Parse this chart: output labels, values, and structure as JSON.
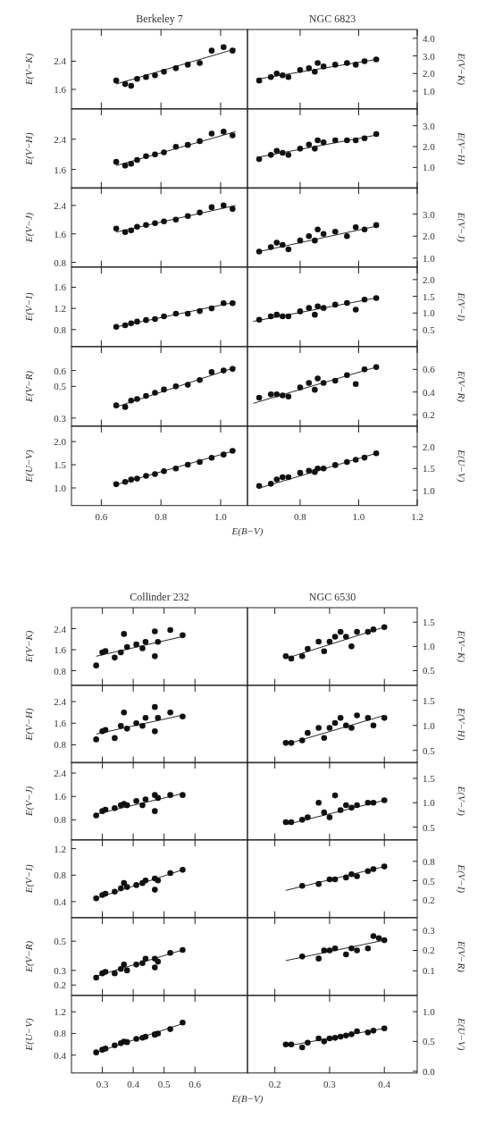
{
  "chart_data": [
    {
      "type": "scatter",
      "title": "Berkeley 7",
      "ylabel": "E(V−K)",
      "xlim": [
        0.5,
        1.09
      ],
      "xticks": [
        0.6,
        0.8,
        1
      ],
      "ylim": [
        1.05,
        3.3
      ],
      "yticks": [
        1.6,
        2.4
      ],
      "tick_labels": "y",
      "marker": "circle",
      "series": [
        {
          "x": [
            0.65,
            0.68,
            0.7,
            0.72,
            0.75,
            0.78,
            0.81,
            0.85,
            0.89,
            0.93,
            0.97,
            1.01,
            1.04
          ],
          "values": [
            1.85,
            1.75,
            1.7,
            1.9,
            1.95,
            2.0,
            2.1,
            2.2,
            2.3,
            2.35,
            2.7,
            2.8,
            2.7
          ],
          "color": "#111111"
        },
        {
          "type": "line",
          "marker": "none",
          "x": [
            0.65,
            1.05
          ],
          "values": [
            1.75,
            2.75
          ],
          "color": "#111111"
        }
      ]
    },
    {
      "type": "scatter",
      "title": "NGC 6823",
      "ylabel": "E(V−K)",
      "xlim": [
        0.62,
        1.2
      ],
      "xticks": [
        0.8,
        1,
        1.2
      ],
      "ylim": [
        0,
        4.5
      ],
      "yticks": [
        {
          "value": 1,
          "label": "1.0"
        },
        {
          "value": 2,
          "label": "2.0"
        },
        {
          "value": 3,
          "label": "3.0"
        },
        {
          "value": 4,
          "label": "4.0"
        }
      ],
      "tick_labels": "y",
      "marker": "circle",
      "series": [
        {
          "x": [
            0.66,
            0.7,
            0.72,
            0.74,
            0.76,
            0.8,
            0.83,
            0.85,
            0.86,
            0.88,
            0.92,
            0.96,
            0.99,
            1.02,
            1.06
          ],
          "values": [
            1.6,
            1.8,
            2.0,
            1.9,
            1.8,
            2.2,
            2.3,
            2.1,
            2.6,
            2.4,
            2.5,
            2.6,
            2.5,
            2.7,
            2.8
          ],
          "color": "#111111"
        },
        {
          "type": "line",
          "marker": "none",
          "x": [
            0.66,
            1.06
          ],
          "values": [
            1.7,
            2.8
          ],
          "color": "#111111"
        }
      ]
    },
    {
      "type": "scatter",
      "ylabel": "E(V−H)",
      "xlim": [
        0.5,
        1.09
      ],
      "xticks": [
        0.6,
        0.8,
        1
      ],
      "ylim": [
        1.1,
        3.2
      ],
      "yticks": [
        1.6,
        2.4
      ],
      "tick_labels": "y",
      "marker": "circle",
      "series": [
        {
          "x": [
            0.65,
            0.68,
            0.7,
            0.72,
            0.75,
            0.78,
            0.81,
            0.85,
            0.89,
            0.93,
            0.97,
            1.01,
            1.04
          ],
          "values": [
            1.8,
            1.7,
            1.75,
            1.85,
            1.95,
            2.0,
            2.05,
            2.2,
            2.25,
            2.35,
            2.55,
            2.6,
            2.5
          ],
          "color": "#111111"
        },
        {
          "type": "line",
          "marker": "none",
          "x": [
            0.65,
            1.05
          ],
          "values": [
            1.7,
            2.6
          ],
          "color": "#111111"
        }
      ]
    },
    {
      "type": "scatter",
      "ylabel": "E(V−H)",
      "xlim": [
        0.62,
        1.2
      ],
      "xticks": [
        0.8,
        1,
        1.2
      ],
      "ylim": [
        0,
        3.8
      ],
      "yticks": [
        {
          "value": 1,
          "label": "1.0"
        },
        {
          "value": 2,
          "label": "2.0"
        },
        {
          "value": 3,
          "label": "3.0"
        }
      ],
      "tick_labels": "y",
      "marker": "circle",
      "series": [
        {
          "x": [
            0.66,
            0.7,
            0.72,
            0.74,
            0.76,
            0.8,
            0.83,
            0.85,
            0.86,
            0.88,
            0.92,
            0.96,
            0.99,
            1.02,
            1.06
          ],
          "values": [
            1.4,
            1.6,
            1.8,
            1.7,
            1.6,
            1.9,
            2.1,
            1.9,
            2.3,
            2.2,
            2.3,
            2.3,
            2.3,
            2.4,
            2.6
          ],
          "color": "#111111"
        },
        {
          "type": "line",
          "marker": "none",
          "x": [
            0.66,
            1.06
          ],
          "values": [
            1.5,
            2.55
          ],
          "color": "#111111"
        }
      ]
    },
    {
      "type": "scatter",
      "ylabel": "E(V−J)",
      "xlim": [
        0.5,
        1.09
      ],
      "xticks": [
        0.6,
        0.8,
        1
      ],
      "ylim": [
        0.67,
        2.9
      ],
      "yticks": [
        0.8,
        1.6,
        2.4
      ],
      "tick_labels": "y",
      "marker": "circle",
      "series": [
        {
          "x": [
            0.65,
            0.68,
            0.7,
            0.72,
            0.75,
            0.78,
            0.81,
            0.85,
            0.89,
            0.93,
            0.97,
            1.01,
            1.04
          ],
          "values": [
            1.75,
            1.65,
            1.7,
            1.8,
            1.85,
            1.9,
            1.95,
            2.0,
            2.1,
            2.2,
            2.35,
            2.4,
            2.3
          ],
          "color": "#111111"
        },
        {
          "type": "line",
          "marker": "none",
          "x": [
            0.65,
            1.05
          ],
          "values": [
            1.65,
            2.4
          ],
          "color": "#111111"
        }
      ]
    },
    {
      "type": "scatter",
      "ylabel": "E(V−J)",
      "xlim": [
        0.62,
        1.2
      ],
      "xticks": [
        0.8,
        1,
        1.2
      ],
      "ylim": [
        0.6,
        4.2
      ],
      "yticks": [
        {
          "value": 1,
          "label": "1.0"
        },
        {
          "value": 2,
          "label": "2.0"
        },
        {
          "value": 3,
          "label": "3.0"
        }
      ],
      "tick_labels": "y",
      "marker": "circle",
      "series": [
        {
          "x": [
            0.66,
            0.7,
            0.72,
            0.74,
            0.76,
            0.8,
            0.83,
            0.85,
            0.86,
            0.88,
            0.92,
            0.96,
            0.99,
            1.02,
            1.06
          ],
          "values": [
            1.3,
            1.5,
            1.7,
            1.6,
            1.4,
            1.8,
            2.0,
            1.8,
            2.3,
            2.1,
            2.2,
            2.0,
            2.4,
            2.3,
            2.5
          ],
          "color": "#111111"
        },
        {
          "type": "line",
          "marker": "none",
          "x": [
            0.66,
            1.06
          ],
          "values": [
            1.3,
            2.45
          ],
          "color": "#111111"
        }
      ]
    },
    {
      "type": "scatter",
      "ylabel": "E(V−I)",
      "xlim": [
        0.5,
        1.09
      ],
      "xticks": [
        0.6,
        0.8,
        1
      ],
      "ylim": [
        0.48,
        1.98
      ],
      "yticks": [
        0.8,
        1.2,
        1.6
      ],
      "tick_labels": "y",
      "marker": "circle",
      "series": [
        {
          "x": [
            0.65,
            0.68,
            0.7,
            0.72,
            0.75,
            0.78,
            0.81,
            0.85,
            0.89,
            0.93,
            0.97,
            1.01,
            1.04
          ],
          "values": [
            0.85,
            0.88,
            0.92,
            0.95,
            0.98,
            1.0,
            1.05,
            1.1,
            1.1,
            1.15,
            1.2,
            1.3,
            1.3
          ],
          "color": "#111111"
        },
        {
          "type": "line",
          "marker": "none",
          "x": [
            0.65,
            1.05
          ],
          "values": [
            0.85,
            1.32
          ],
          "color": "#111111"
        }
      ]
    },
    {
      "type": "scatter",
      "ylabel": "E(V−I)",
      "xlim": [
        0.62,
        1.2
      ],
      "xticks": [
        0.8,
        1,
        1.2
      ],
      "ylim": [
        0,
        2.37
      ],
      "yticks": [
        0.5,
        {
          "value": 1,
          "label": "1.0"
        },
        1.5,
        {
          "value": 2,
          "label": "2.0"
        }
      ],
      "tick_labels": "y",
      "marker": "circle",
      "series": [
        {
          "x": [
            0.66,
            0.7,
            0.72,
            0.74,
            0.76,
            0.8,
            0.83,
            0.85,
            0.86,
            0.88,
            0.92,
            0.96,
            0.99,
            1.02,
            1.06
          ],
          "values": [
            0.8,
            0.9,
            0.95,
            0.9,
            0.9,
            1.05,
            1.15,
            0.95,
            1.2,
            1.15,
            1.25,
            1.3,
            1.1,
            1.4,
            1.45
          ],
          "color": "#111111"
        },
        {
          "type": "line",
          "marker": "none",
          "x": [
            0.64,
            1.06
          ],
          "values": [
            0.75,
            1.45
          ],
          "color": "#111111"
        }
      ]
    },
    {
      "type": "scatter",
      "ylabel": "E(V−R)",
      "xlim": [
        0.5,
        1.09
      ],
      "xticks": [
        0.6,
        0.8,
        1
      ],
      "ylim": [
        0.25,
        0.75
      ],
      "yticks": [
        0.3,
        0.5,
        0.6
      ],
      "tick_labels": "y",
      "marker": "circle",
      "series": [
        {
          "x": [
            0.65,
            0.68,
            0.7,
            0.72,
            0.75,
            0.78,
            0.81,
            0.85,
            0.89,
            0.93,
            0.97,
            1.01,
            1.04
          ],
          "values": [
            0.38,
            0.37,
            0.41,
            0.42,
            0.44,
            0.46,
            0.48,
            0.5,
            0.51,
            0.54,
            0.59,
            0.6,
            0.61
          ],
          "color": "#111111"
        },
        {
          "type": "line",
          "marker": "none",
          "x": [
            0.65,
            1.05
          ],
          "values": [
            0.37,
            0.62
          ],
          "color": "#111111"
        }
      ]
    },
    {
      "type": "scatter",
      "ylabel": "E(V−R)",
      "xlim": [
        0.62,
        1.2
      ],
      "xticks": [
        0.8,
        1,
        1.2
      ],
      "ylim": [
        0.1,
        0.8
      ],
      "yticks": [
        0.2,
        0.4,
        0.6
      ],
      "tick_labels": "y",
      "marker": "circle",
      "series": [
        {
          "x": [
            0.66,
            0.7,
            0.72,
            0.74,
            0.76,
            0.8,
            0.83,
            0.85,
            0.86,
            0.88,
            0.92,
            0.96,
            0.99,
            1.02,
            1.06
          ],
          "values": [
            0.35,
            0.38,
            0.38,
            0.37,
            0.36,
            0.44,
            0.48,
            0.42,
            0.52,
            0.48,
            0.5,
            0.55,
            0.47,
            0.6,
            0.62
          ],
          "color": "#111111"
        },
        {
          "type": "line",
          "marker": "none",
          "x": [
            0.64,
            1.06
          ],
          "values": [
            0.3,
            0.62
          ],
          "color": "#111111"
        }
      ]
    },
    {
      "type": "scatter",
      "ylabel": "E(U−V)",
      "xlabel": "E(B−V)",
      "xlim": [
        0.5,
        1.09
      ],
      "xticks": [
        0.6,
        0.8,
        {
          "value": 1,
          "label": "1.0"
        }
      ],
      "ylim": [
        0.62,
        2.33
      ],
      "yticks": [
        {
          "value": 1,
          "label": "1.0"
        },
        1.5,
        {
          "value": 2,
          "label": "2.0"
        }
      ],
      "marker": "circle",
      "series": [
        {
          "x": [
            0.65,
            0.68,
            0.7,
            0.72,
            0.75,
            0.78,
            0.81,
            0.85,
            0.89,
            0.93,
            0.97,
            1.01,
            1.04
          ],
          "values": [
            1.08,
            1.13,
            1.18,
            1.2,
            1.26,
            1.3,
            1.36,
            1.42,
            1.5,
            1.56,
            1.65,
            1.72,
            1.8
          ],
          "color": "#111111"
        },
        {
          "type": "line",
          "marker": "none",
          "x": [
            0.65,
            1.05
          ],
          "values": [
            1.07,
            1.81
          ],
          "color": "#111111"
        }
      ]
    },
    {
      "type": "scatter",
      "ylabel": "E(U−V)",
      "xlim": [
        0.62,
        1.2
      ],
      "xticks": [
        0.8,
        {
          "value": 1,
          "label": "1.0"
        },
        1.2
      ],
      "ylim": [
        0.65,
        2.47
      ],
      "yticks": [
        {
          "value": 1,
          "label": "1.0"
        },
        1.5,
        {
          "value": 2,
          "label": "2.0"
        }
      ],
      "marker": "circle",
      "series": [
        {
          "x": [
            0.66,
            0.7,
            0.72,
            0.74,
            0.76,
            0.8,
            0.83,
            0.85,
            0.86,
            0.88,
            0.92,
            0.96,
            0.99,
            1.02,
            1.06
          ],
          "values": [
            1.1,
            1.15,
            1.25,
            1.3,
            1.3,
            1.4,
            1.45,
            1.42,
            1.5,
            1.5,
            1.58,
            1.65,
            1.7,
            1.75,
            1.85
          ],
          "color": "#111111"
        },
        {
          "type": "line",
          "marker": "none",
          "x": [
            0.66,
            1.06
          ],
          "values": [
            1.05,
            1.85
          ],
          "color": "#111111"
        }
      ]
    },
    {
      "type": "scatter",
      "title": "Collinder 232",
      "ylabel": "E(V−K)",
      "xlim": [
        0.2,
        0.77
      ],
      "xticks": [
        0.3,
        0.4,
        0.5,
        0.6
      ],
      "ylim": [
        0.25,
        3.2
      ],
      "yticks": [
        0.8,
        1.6,
        2.4
      ],
      "tick_labels": "y",
      "marker": "circle",
      "series": [
        {
          "x": [
            0.28,
            0.3,
            0.31,
            0.34,
            0.36,
            0.37,
            0.38,
            0.41,
            0.43,
            0.44,
            0.47,
            0.47,
            0.48,
            0.52,
            0.56
          ],
          "values": [
            1.0,
            1.5,
            1.55,
            1.3,
            1.5,
            2.2,
            1.7,
            1.8,
            1.65,
            1.9,
            2.3,
            1.35,
            1.9,
            2.35,
            2.15
          ],
          "color": "#111111"
        },
        {
          "type": "line",
          "marker": "none",
          "x": [
            0.28,
            0.56
          ],
          "values": [
            1.35,
            2.1
          ],
          "color": "#111111"
        }
      ]
    },
    {
      "type": "scatter",
      "title": "NGC 6530",
      "ylabel": "E(V−K)",
      "xlim": [
        0.15,
        0.46
      ],
      "xticks": [
        0.2,
        0.3,
        0.4
      ],
      "ylim": [
        0.2,
        1.8
      ],
      "yticks": [
        0.5,
        {
          "value": 1,
          "label": "1.0"
        },
        1.5
      ],
      "tick_labels": "y",
      "marker": "circle",
      "series": [
        {
          "x": [
            0.22,
            0.23,
            0.25,
            0.26,
            0.28,
            0.29,
            0.3,
            0.31,
            0.32,
            0.33,
            0.34,
            0.35,
            0.37,
            0.38,
            0.4
          ],
          "values": [
            0.8,
            0.75,
            0.8,
            0.95,
            1.1,
            0.9,
            1.1,
            1.2,
            1.3,
            1.2,
            1.0,
            1.3,
            1.3,
            1.35,
            1.4
          ],
          "color": "#111111"
        },
        {
          "type": "line",
          "marker": "none",
          "x": [
            0.22,
            0.4
          ],
          "values": [
            0.75,
            1.4
          ],
          "color": "#111111"
        }
      ]
    },
    {
      "type": "scatter",
      "ylabel": "E(V−H)",
      "xlim": [
        0.2,
        0.77
      ],
      "xticks": [
        0.3,
        0.4,
        0.5,
        0.6
      ],
      "ylim": [
        0.13,
        3.0
      ],
      "yticks": [
        0.8,
        1.6,
        2.4
      ],
      "tick_labels": "y",
      "marker": "circle",
      "series": [
        {
          "x": [
            0.28,
            0.3,
            0.31,
            0.34,
            0.36,
            0.37,
            0.38,
            0.41,
            0.43,
            0.44,
            0.47,
            0.47,
            0.48,
            0.52,
            0.56
          ],
          "values": [
            1.0,
            1.3,
            1.35,
            1.05,
            1.5,
            2.0,
            1.4,
            1.6,
            1.5,
            1.8,
            2.2,
            1.3,
            1.8,
            2.0,
            1.85
          ],
          "color": "#111111"
        },
        {
          "type": "line",
          "marker": "none",
          "x": [
            0.28,
            0.56
          ],
          "values": [
            1.2,
            1.9
          ],
          "color": "#111111"
        }
      ]
    },
    {
      "type": "scatter",
      "ylabel": "E(V−H)",
      "xlim": [
        0.15,
        0.46
      ],
      "xticks": [
        0.2,
        0.3,
        0.4
      ],
      "ylim": [
        0.25,
        1.8
      ],
      "yticks": [
        0.5,
        {
          "value": 1,
          "label": "1.0"
        },
        1.5
      ],
      "tick_labels": "y",
      "marker": "circle",
      "series": [
        {
          "x": [
            0.22,
            0.23,
            0.25,
            0.26,
            0.28,
            0.29,
            0.3,
            0.31,
            0.32,
            0.33,
            0.34,
            0.35,
            0.37,
            0.38,
            0.4
          ],
          "values": [
            0.65,
            0.65,
            0.7,
            0.85,
            0.95,
            0.75,
            0.95,
            1.05,
            1.15,
            1.0,
            0.95,
            1.2,
            1.15,
            1.0,
            1.15
          ],
          "color": "#111111"
        },
        {
          "type": "line",
          "marker": "none",
          "x": [
            0.22,
            0.4
          ],
          "values": [
            0.62,
            1.2
          ],
          "color": "#111111"
        }
      ]
    },
    {
      "type": "scatter",
      "ylabel": "E(V−J)",
      "xlim": [
        0.2,
        0.77
      ],
      "xticks": [
        0.3,
        0.4,
        0.5,
        0.6
      ],
      "ylim": [
        0.12,
        2.77
      ],
      "yticks": [
        0.8,
        1.6,
        2.4
      ],
      "tick_labels": "y",
      "marker": "circle",
      "series": [
        {
          "x": [
            0.28,
            0.3,
            0.31,
            0.34,
            0.36,
            0.37,
            0.38,
            0.41,
            0.43,
            0.44,
            0.47,
            0.47,
            0.48,
            0.52,
            0.56
          ],
          "values": [
            0.95,
            1.1,
            1.15,
            1.2,
            1.3,
            1.35,
            1.3,
            1.45,
            1.3,
            1.5,
            1.65,
            1.1,
            1.55,
            1.65,
            1.65
          ],
          "color": "#111111"
        },
        {
          "type": "line",
          "marker": "none",
          "x": [
            0.28,
            0.56
          ],
          "values": [
            1.0,
            1.7
          ],
          "color": "#111111"
        }
      ]
    },
    {
      "type": "scatter",
      "ylabel": "E(V−J)",
      "xlim": [
        0.15,
        0.46
      ],
      "xticks": [
        0.2,
        0.3,
        0.4
      ],
      "ylim": [
        0.24,
        1.83
      ],
      "yticks": [
        0.5,
        {
          "value": 1,
          "label": "1.0"
        },
        1.5
      ],
      "tick_labels": "y",
      "marker": "circle",
      "series": [
        {
          "x": [
            0.22,
            0.23,
            0.25,
            0.26,
            0.28,
            0.29,
            0.3,
            0.31,
            0.32,
            0.33,
            0.34,
            0.35,
            0.37,
            0.38,
            0.4
          ],
          "values": [
            0.6,
            0.6,
            0.65,
            0.7,
            1.0,
            0.8,
            0.7,
            1.15,
            0.85,
            0.95,
            0.9,
            0.95,
            1.0,
            1.0,
            1.05
          ],
          "color": "#111111"
        },
        {
          "type": "line",
          "marker": "none",
          "x": [
            0.22,
            0.4
          ],
          "values": [
            0.55,
            1.05
          ],
          "color": "#111111"
        }
      ]
    },
    {
      "type": "scatter",
      "ylabel": "E(V−I)",
      "xlim": [
        0.2,
        0.77
      ],
      "xticks": [
        0.3,
        0.4,
        0.5,
        0.6
      ],
      "ylim": [
        0.16,
        1.33
      ],
      "yticks": [
        0.4,
        0.8,
        1.2
      ],
      "tick_labels": "y",
      "marker": "circle",
      "series": [
        {
          "x": [
            0.28,
            0.3,
            0.31,
            0.34,
            0.36,
            0.37,
            0.38,
            0.41,
            0.43,
            0.44,
            0.47,
            0.47,
            0.48,
            0.52,
            0.56
          ],
          "values": [
            0.45,
            0.5,
            0.52,
            0.55,
            0.6,
            0.68,
            0.62,
            0.65,
            0.68,
            0.72,
            0.75,
            0.58,
            0.72,
            0.83,
            0.88
          ],
          "color": "#111111"
        },
        {
          "type": "line",
          "marker": "none",
          "x": [
            0.28,
            0.56
          ],
          "values": [
            0.45,
            0.88
          ],
          "color": "#111111"
        }
      ]
    },
    {
      "type": "scatter",
      "ylabel": "E(V−I)",
      "xlim": [
        0.15,
        0.46
      ],
      "xticks": [
        0.2,
        0.3,
        0.4
      ],
      "ylim": [
        -0.07,
        1.13
      ],
      "yticks": [
        0.2,
        0.5,
        0.8
      ],
      "tick_labels": "y",
      "marker": "circle",
      "series": [
        {
          "x": [
            0.25,
            0.28,
            0.3,
            0.31,
            0.33,
            0.34,
            0.35,
            0.37,
            0.38,
            0.4
          ],
          "values": [
            0.42,
            0.45,
            0.52,
            0.52,
            0.55,
            0.6,
            0.57,
            0.65,
            0.68,
            0.72
          ],
          "color": "#111111"
        },
        {
          "type": "line",
          "marker": "none",
          "x": [
            0.22,
            0.4
          ],
          "values": [
            0.35,
            0.72
          ],
          "color": "#111111"
        }
      ]
    },
    {
      "type": "scatter",
      "ylabel": "E(V−R)",
      "xlim": [
        0.2,
        0.77
      ],
      "xticks": [
        0.3,
        0.4,
        0.5,
        0.6
      ],
      "ylim": [
        0.13,
        0.66
      ],
      "yticks": [
        0.2,
        0.3,
        0.5
      ],
      "tick_labels": "y",
      "marker": "circle",
      "series": [
        {
          "x": [
            0.28,
            0.3,
            0.31,
            0.34,
            0.36,
            0.37,
            0.38,
            0.41,
            0.43,
            0.44,
            0.47,
            0.47,
            0.48,
            0.52,
            0.56
          ],
          "values": [
            0.25,
            0.28,
            0.29,
            0.28,
            0.31,
            0.34,
            0.3,
            0.34,
            0.35,
            0.38,
            0.38,
            0.32,
            0.36,
            0.42,
            0.44
          ],
          "color": "#111111"
        },
        {
          "type": "line",
          "marker": "none",
          "x": [
            0.28,
            0.56
          ],
          "values": [
            0.26,
            0.44
          ],
          "color": "#111111"
        }
      ]
    },
    {
      "type": "scatter",
      "ylabel": "E(V−R)",
      "xlim": [
        0.15,
        0.46
      ],
      "xticks": [
        0.2,
        0.3,
        0.4
      ],
      "ylim": [
        -0.02,
        0.36
      ],
      "yticks": [
        0.1,
        0.2,
        0.3
      ],
      "tick_labels": "y",
      "marker": "circle",
      "series": [
        {
          "x": [
            0.25,
            0.28,
            0.29,
            0.3,
            0.31,
            0.33,
            0.34,
            0.35,
            0.37,
            0.38,
            0.39,
            0.4
          ],
          "values": [
            0.17,
            0.16,
            0.2,
            0.2,
            0.21,
            0.18,
            0.21,
            0.2,
            0.21,
            0.27,
            0.26,
            0.25
          ],
          "color": "#111111"
        },
        {
          "type": "line",
          "marker": "none",
          "x": [
            0.22,
            0.4
          ],
          "values": [
            0.15,
            0.25
          ],
          "color": "#111111"
        }
      ]
    },
    {
      "type": "scatter",
      "ylabel": "E(U−V)",
      "xlabel": "E(B−V)",
      "xlim": [
        0.2,
        0.77
      ],
      "xticks": [
        0.3,
        0.4,
        0.5,
        0.6
      ],
      "ylim": [
        0.07,
        1.5
      ],
      "yticks": [
        0.4,
        0.8,
        1.2
      ],
      "marker": "circle",
      "series": [
        {
          "x": [
            0.28,
            0.3,
            0.31,
            0.34,
            0.36,
            0.37,
            0.38,
            0.41,
            0.43,
            0.44,
            0.47,
            0.47,
            0.48,
            0.52,
            0.56
          ],
          "values": [
            0.45,
            0.5,
            0.52,
            0.58,
            0.62,
            0.65,
            0.64,
            0.7,
            0.72,
            0.74,
            0.78,
            0.78,
            0.8,
            0.88,
            1.0
          ],
          "color": "#111111"
        },
        {
          "type": "line",
          "marker": "none",
          "x": [
            0.28,
            0.56
          ],
          "values": [
            0.45,
            0.98
          ],
          "color": "#111111"
        }
      ]
    },
    {
      "type": "scatter",
      "ylabel": "E(U−V)",
      "xlim": [
        0.15,
        0.46
      ],
      "xticks": [
        0.2,
        0.3,
        0.4
      ],
      "ylim": [
        -0.03,
        1.27
      ],
      "yticks": [
        {
          "value": 0,
          "label": "0.0"
        },
        0.5,
        {
          "value": 1,
          "label": "1.0"
        }
      ],
      "marker": "circle",
      "series": [
        {
          "x": [
            0.22,
            0.23,
            0.25,
            0.26,
            0.28,
            0.29,
            0.3,
            0.31,
            0.32,
            0.33,
            0.34,
            0.35,
            0.37,
            0.38,
            0.4
          ],
          "values": [
            0.45,
            0.45,
            0.4,
            0.48,
            0.55,
            0.5,
            0.55,
            0.56,
            0.58,
            0.6,
            0.62,
            0.67,
            0.65,
            0.68,
            0.72
          ],
          "color": "#111111"
        },
        {
          "type": "line",
          "marker": "none",
          "x": [
            0.22,
            0.4
          ],
          "values": [
            0.42,
            0.72
          ],
          "color": "#111111"
        }
      ]
    }
  ]
}
